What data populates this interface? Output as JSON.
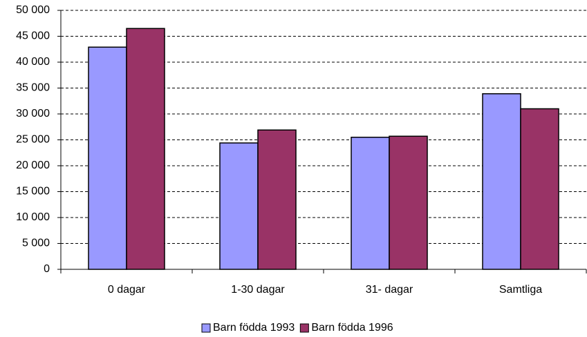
{
  "chart_data": {
    "type": "bar",
    "categories": [
      "0 dagar",
      "1-30 dagar",
      "31- dagar",
      "Samtliga"
    ],
    "series": [
      {
        "name": "Barn födda 1993",
        "color": "#9999ff",
        "values": [
          42900,
          24400,
          25500,
          33900
        ]
      },
      {
        "name": "Barn födda 1996",
        "color": "#993366",
        "values": [
          46500,
          26900,
          25700,
          31000
        ]
      }
    ],
    "ylim": [
      0,
      50000
    ],
    "yticks": [
      0,
      {
        "value": 5000,
        "label": "5 000"
      },
      {
        "value": 10000,
        "label": "10 000"
      },
      {
        "value": 15000,
        "label": "15 000"
      },
      {
        "value": 20000,
        "label": "20 000"
      },
      {
        "value": 25000,
        "label": "25 000"
      },
      {
        "value": 30000,
        "label": "30 000"
      },
      {
        "value": 35000,
        "label": "35 000"
      },
      {
        "value": 40000,
        "label": "40 000"
      },
      {
        "value": 45000,
        "label": "45 000"
      },
      {
        "value": 50000,
        "label": "50 000"
      }
    ],
    "grid": true,
    "legend": "bottom"
  }
}
